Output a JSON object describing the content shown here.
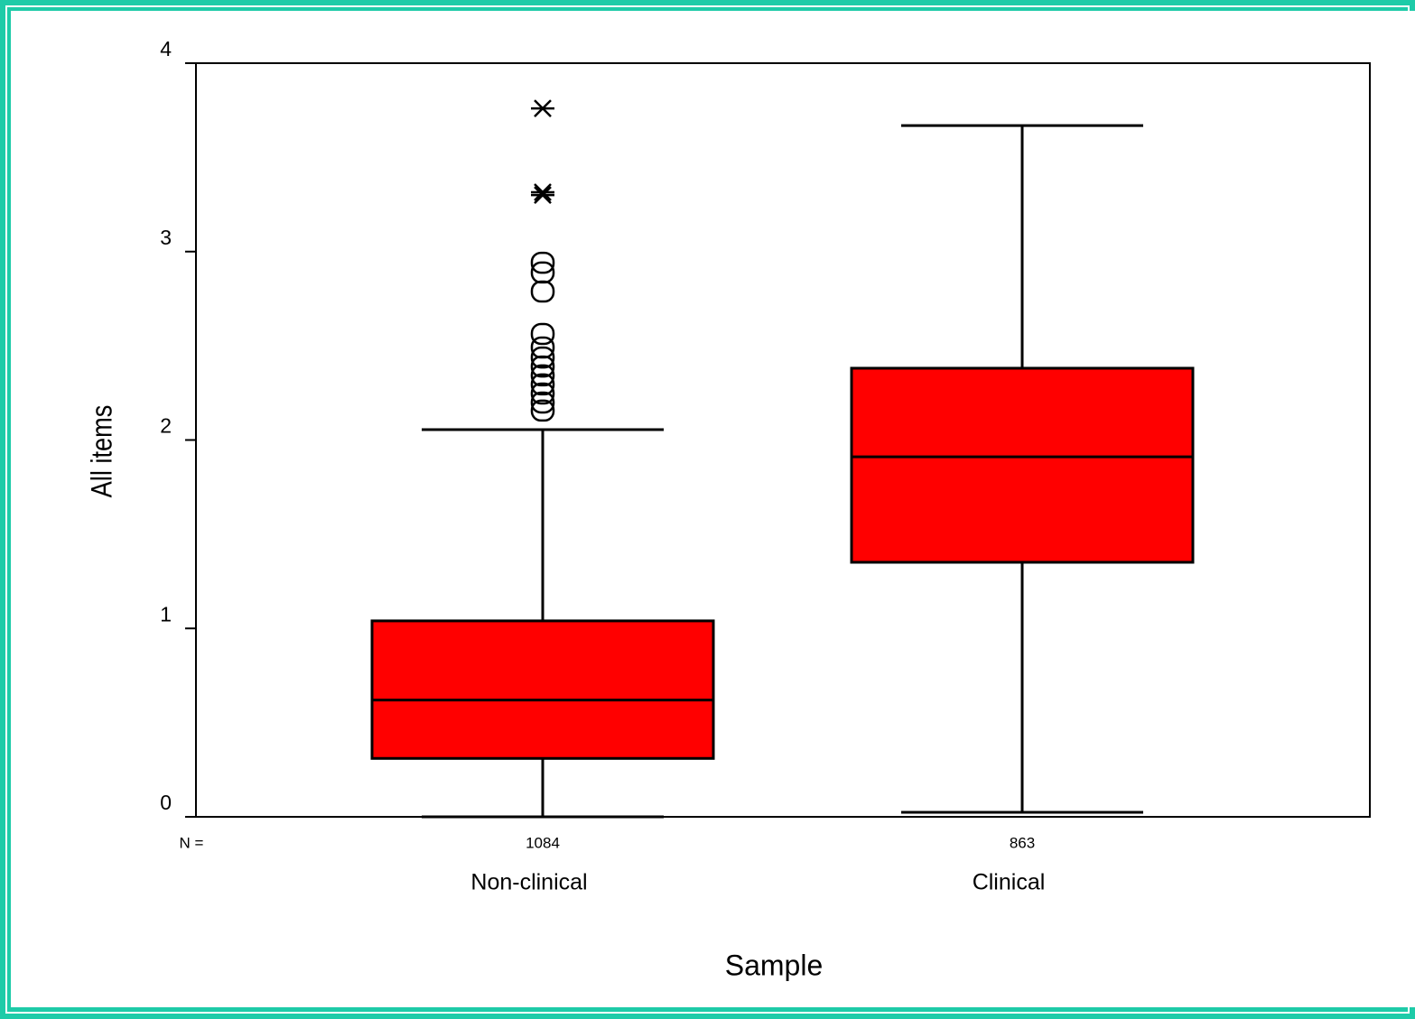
{
  "chart_data": {
    "type": "box",
    "x_label": "Sample",
    "y_label": "All items",
    "categories": [
      "Non-clinical",
      "Clinical"
    ],
    "n_label": "N =",
    "n": [
      1084,
      863
    ],
    "color": "#ff0000",
    "boxes": [
      {
        "whisker_low": 0,
        "q1": 0.31,
        "median": 0.62,
        "q3": 1.04,
        "whisker_high": 2.055,
        "outliers": [
          2.156,
          2.199,
          2.247,
          2.295,
          2.343,
          2.39,
          2.438,
          2.491,
          2.563,
          2.788,
          2.889,
          2.941
        ],
        "extremes": [
          3.3,
          3.315,
          3.76
        ]
      },
      {
        "whisker_low": 0.024,
        "q1": 1.351,
        "median": 1.911,
        "q3": 2.381,
        "whisker_high": 3.669,
        "outliers": [],
        "extremes": []
      }
    ],
    "ylim": [
      0,
      4
    ],
    "yticks": [
      0,
      1,
      2,
      3,
      4
    ]
  }
}
